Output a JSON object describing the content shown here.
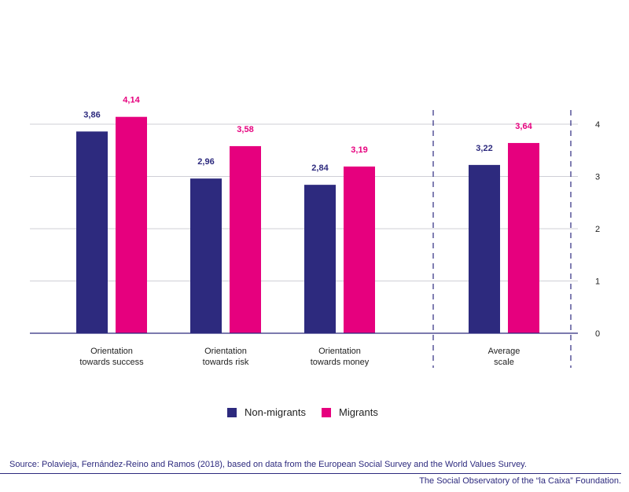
{
  "chart_data": {
    "type": "bar",
    "categories": [
      "Orientation\ntowards success",
      "Orientation\ntowards risk",
      "Orientation\ntowards money",
      "Average\nscale"
    ],
    "series": [
      {
        "name": "Non-migrants",
        "values": [
          3.86,
          2.96,
          2.84,
          3.22
        ],
        "labels": [
          "3,86",
          "2,96",
          "2,84",
          "3,22"
        ],
        "color": "#2d2a7e"
      },
      {
        "name": "Migrants",
        "values": [
          4.14,
          3.58,
          3.19,
          3.64
        ],
        "labels": [
          "4,14",
          "3,58",
          "3,19",
          "3,64"
        ],
        "color": "#e6007e"
      }
    ],
    "ylim": [
      0,
      4
    ],
    "yticks": [
      "0",
      "1",
      "2",
      "3",
      "4"
    ],
    "y_axis_side": "right",
    "grid": true,
    "legend_position": "bottom-center",
    "separator": "dashed vertical lines enclosing the Average scale category"
  },
  "footer": {
    "source": "Source: Polavieja, Fernández-Reino and Ramos (2018), based on data from the European Social Survey and the World Values Survey.",
    "organization": "The Social Observatory of the “la Caixa” Foundation."
  }
}
